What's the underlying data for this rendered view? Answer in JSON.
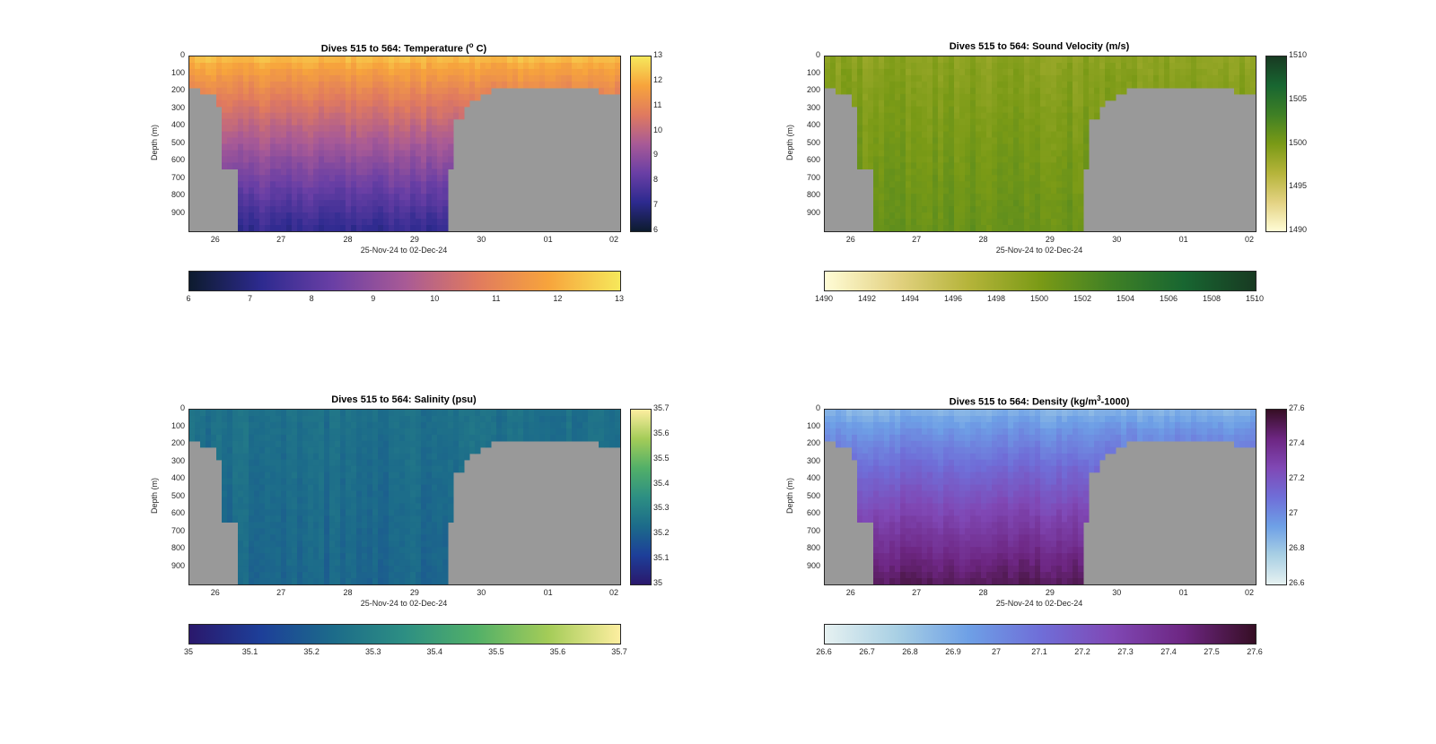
{
  "figure_background": "#ffffff",
  "chart_data": [
    {
      "id": "temperature",
      "type": "heatmap",
      "title_prefix": "Dives 515 to 564: Temperature (",
      "title_sup": "o",
      "title_suffix": " C)",
      "ylabel": "Depth (m)",
      "xlabel": "25-Nov-24 to 02-Dec-24",
      "x_ticks": [
        "26",
        "27",
        "28",
        "29",
        "30",
        "01",
        "02"
      ],
      "y_ticks": [
        "0",
        "100",
        "200",
        "300",
        "400",
        "500",
        "600",
        "700",
        "800",
        "900"
      ],
      "ylim": [
        0,
        1000
      ],
      "colormap": "thermal",
      "colormap_stops": [
        "#0d1b2e",
        "#2d2a8f",
        "#6a3fa5",
        "#a85a96",
        "#e07a5f",
        "#f7a43c",
        "#f6e85b"
      ],
      "clim": [
        6,
        13
      ],
      "side_colorbar_ticks": [
        "13",
        "12",
        "11",
        "10",
        "9",
        "8",
        "7",
        "6"
      ],
      "bottom_colorbar_ticks": [
        "6",
        "7",
        "8",
        "9",
        "10",
        "11",
        "12",
        "13"
      ],
      "mask_color": "#999999",
      "profile_surface_value": 12.2,
      "profile_bottom_value": 7.3
    },
    {
      "id": "sound_velocity",
      "type": "heatmap",
      "title_prefix": "Dives 515 to 564: Sound Velocity (m/s)",
      "title_sup": "",
      "title_suffix": "",
      "ylabel": "Depth (m)",
      "xlabel": "25-Nov-24 to 02-Dec-24",
      "x_ticks": [
        "26",
        "27",
        "28",
        "29",
        "30",
        "01",
        "02"
      ],
      "y_ticks": [
        "0",
        "100",
        "200",
        "300",
        "400",
        "500",
        "600",
        "700",
        "800",
        "900"
      ],
      "ylim": [
        0,
        1000
      ],
      "colormap": "speed",
      "colormap_stops": [
        "#fffcd6",
        "#e3d282",
        "#b5b43a",
        "#7a9a16",
        "#3f8025",
        "#186631",
        "#183a22"
      ],
      "clim": [
        1490,
        1510
      ],
      "side_colorbar_ticks": [
        "1510",
        "1505",
        "1500",
        "1495",
        "1490"
      ],
      "bottom_colorbar_ticks": [
        "1490",
        "1492",
        "1494",
        "1496",
        "1498",
        "1500",
        "1502",
        "1504",
        "1506",
        "1508",
        "1510"
      ],
      "mask_color": "#999999",
      "profile_surface_value": 1499.0,
      "profile_bottom_value": 1501.0
    },
    {
      "id": "salinity",
      "type": "heatmap",
      "title_prefix": "Dives 515 to 564: Salinity (psu)",
      "title_sup": "",
      "title_suffix": "",
      "ylabel": "Depth (m)",
      "xlabel": "25-Nov-24 to 02-Dec-24",
      "x_ticks": [
        "26",
        "27",
        "28",
        "29",
        "30",
        "01",
        "02"
      ],
      "y_ticks": [
        "0",
        "100",
        "200",
        "300",
        "400",
        "500",
        "600",
        "700",
        "800",
        "900"
      ],
      "ylim": [
        0,
        1000
      ],
      "colormap": "haline",
      "colormap_stops": [
        "#2a186c",
        "#1d3f99",
        "#1c6b8a",
        "#2d8f83",
        "#52b068",
        "#a4cc58",
        "#fdeea0"
      ],
      "clim": [
        35,
        35.7
      ],
      "side_colorbar_ticks": [
        "35.7",
        "35.6",
        "35.5",
        "35.4",
        "35.3",
        "35.2",
        "35.1",
        "35"
      ],
      "bottom_colorbar_ticks": [
        "35",
        "35.1",
        "35.2",
        "35.3",
        "35.4",
        "35.5",
        "35.6",
        "35.7"
      ],
      "mask_color": "#999999",
      "profile_surface_value": 35.25,
      "profile_bottom_value": 35.22
    },
    {
      "id": "density",
      "type": "heatmap",
      "title_prefix": "Dives 515 to 564: Density (kg/m",
      "title_sup": "3",
      "title_suffix": "-1000)",
      "ylabel": "Depth (m)",
      "xlabel": "25-Nov-24 to 02-Dec-24",
      "x_ticks": [
        "26",
        "27",
        "28",
        "29",
        "30",
        "01",
        "02"
      ],
      "y_ticks": [
        "0",
        "100",
        "200",
        "300",
        "400",
        "500",
        "600",
        "700",
        "800",
        "900"
      ],
      "ylim": [
        0,
        1000
      ],
      "colormap": "dense",
      "colormap_stops": [
        "#e6f1f1",
        "#a9d0e4",
        "#6ea0e6",
        "#6f6ed8",
        "#8048b5",
        "#6d2682",
        "#360e24"
      ],
      "clim": [
        26.6,
        27.6
      ],
      "side_colorbar_ticks": [
        "27.6",
        "27.4",
        "27.2",
        "27",
        "26.8",
        "26.6"
      ],
      "bottom_colorbar_ticks": [
        "26.6",
        "26.7",
        "26.8",
        "26.9",
        "27",
        "27.1",
        "27.2",
        "27.3",
        "27.4",
        "27.5",
        "27.6"
      ],
      "mask_color": "#999999",
      "profile_surface_value": 26.88,
      "profile_bottom_value": 27.5
    }
  ]
}
